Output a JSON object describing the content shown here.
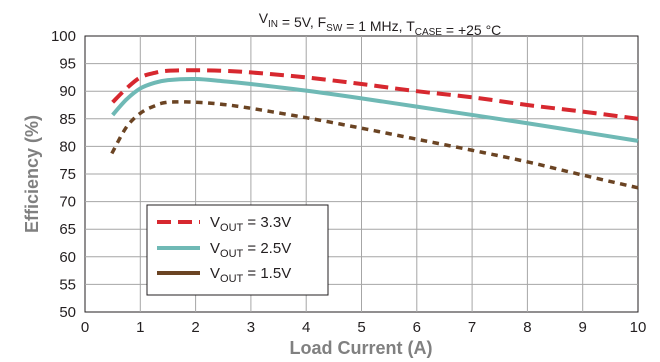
{
  "chart_data": {
    "type": "line",
    "title": {
      "parts": [
        {
          "text": "V",
          "sub": "IN"
        },
        {
          "text": " = 5V, F",
          "sub": "SW"
        },
        {
          "text": " = 1 MHz, T",
          "sub": "CASE"
        },
        {
          "text": " = +25 °C"
        }
      ]
    },
    "xlabel": "Load Current (A)",
    "ylabel": "Efficiency (%)",
    "xlim": [
      0,
      10
    ],
    "ylim": [
      50,
      100
    ],
    "xticks": [
      0,
      1,
      2,
      3,
      4,
      5,
      6,
      7,
      8,
      9,
      10
    ],
    "yticks": [
      50,
      55,
      60,
      65,
      70,
      75,
      80,
      85,
      90,
      95,
      100
    ],
    "grid": true,
    "legend_position": "lower-left",
    "series": [
      {
        "name": {
          "pre": "V",
          "sub": "OUT",
          "post": " = 3.3V"
        },
        "color": "#d7282f",
        "style": "dashed",
        "x": [
          0.5,
          0.75,
          1.0,
          1.25,
          1.5,
          2.0,
          2.5,
          3.0,
          4.0,
          5.0,
          6.0,
          7.0,
          8.0,
          9.0,
          10.0
        ],
        "y": [
          88.0,
          90.5,
          92.5,
          93.3,
          93.7,
          93.8,
          93.7,
          93.4,
          92.5,
          91.3,
          90.0,
          88.9,
          87.5,
          86.3,
          85.0
        ]
      },
      {
        "name": {
          "pre": "V",
          "sub": "OUT",
          "post": " = 2.5V"
        },
        "color": "#6fb9b5",
        "style": "solid",
        "x": [
          0.5,
          0.75,
          1.0,
          1.25,
          1.5,
          2.0,
          2.5,
          3.0,
          4.0,
          5.0,
          6.0,
          7.0,
          8.0,
          9.0,
          10.0
        ],
        "y": [
          85.7,
          88.5,
          90.5,
          91.5,
          92.0,
          92.2,
          91.8,
          91.3,
          90.1,
          88.7,
          87.2,
          85.7,
          84.2,
          82.6,
          81.0
        ]
      },
      {
        "name": {
          "pre": "V",
          "sub": "OUT",
          "post": " = 1.5V"
        },
        "color": "#6b4423",
        "style": "dotted",
        "x": [
          0.5,
          0.75,
          1.0,
          1.25,
          1.5,
          2.0,
          2.5,
          3.0,
          4.0,
          5.0,
          6.0,
          7.0,
          8.0,
          9.0,
          10.0
        ],
        "y": [
          79.0,
          83.5,
          86.0,
          87.3,
          88.0,
          88.0,
          87.6,
          86.9,
          85.2,
          83.3,
          81.3,
          79.3,
          77.2,
          74.8,
          72.5
        ]
      }
    ]
  }
}
